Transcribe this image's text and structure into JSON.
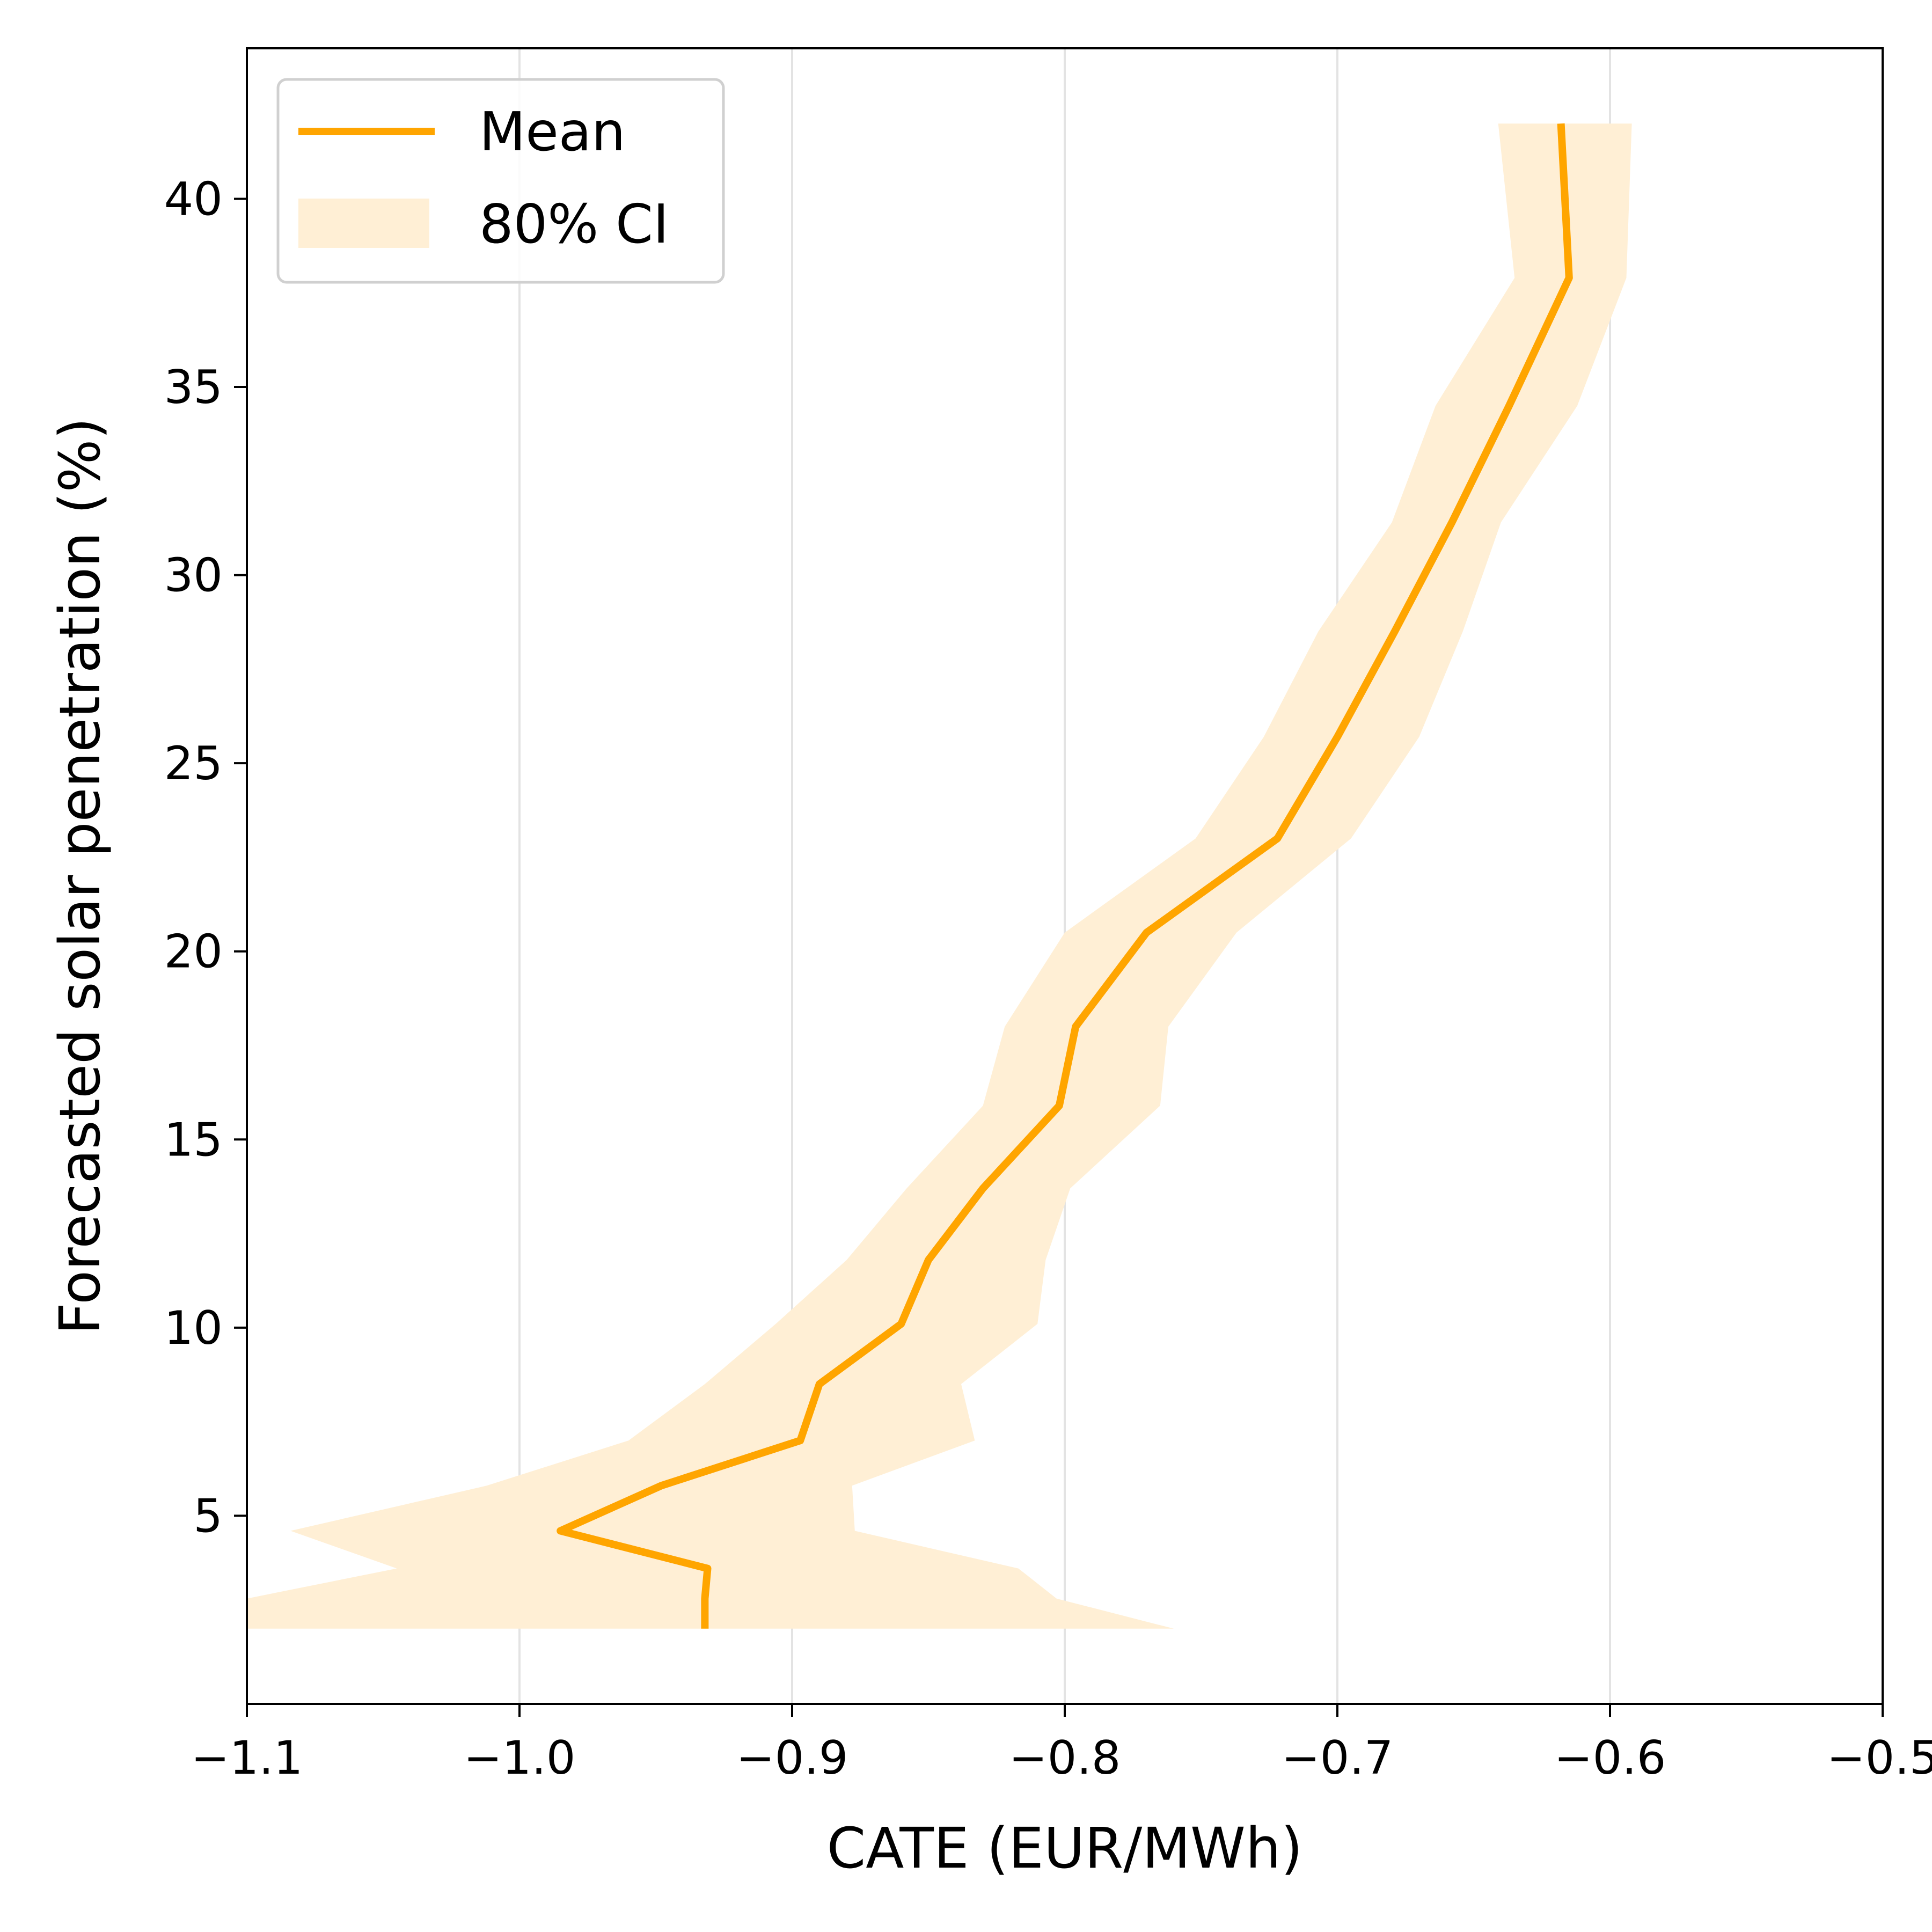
{
  "chart_data": {
    "type": "line",
    "title": "",
    "xlabel": "CATE (EUR/MWh)",
    "ylabel": "Forecasted solar penetration (%)",
    "xlim": [
      -1.1,
      -0.5
    ],
    "ylim": [
      0,
      44
    ],
    "x_ticks": [
      -1.1,
      -1.0,
      -0.9,
      -0.8,
      -0.7,
      -0.6,
      -0.5
    ],
    "x_tick_labels": [
      "−1.1",
      "−1.0",
      "−0.9",
      "−0.8",
      "−0.7",
      "−0.6",
      "−0.5"
    ],
    "y_ticks": [
      5,
      10,
      15,
      20,
      25,
      30,
      35,
      40
    ],
    "y_tick_labels": [
      "5",
      "10",
      "15",
      "20",
      "25",
      "30",
      "35",
      "40"
    ],
    "grid": "vertical",
    "legend_position": "top-left",
    "series": [
      {
        "name": "Mean",
        "color": "#FFA500",
        "points": [
          {
            "x": -0.932,
            "y": 2.0
          },
          {
            "x": -0.932,
            "y": 2.8
          },
          {
            "x": -0.931,
            "y": 3.6
          },
          {
            "x": -0.985,
            "y": 4.6
          },
          {
            "x": -0.948,
            "y": 5.8
          },
          {
            "x": -0.897,
            "y": 7.0
          },
          {
            "x": -0.89,
            "y": 8.5
          },
          {
            "x": -0.86,
            "y": 10.1
          },
          {
            "x": -0.85,
            "y": 11.8
          },
          {
            "x": -0.83,
            "y": 13.7
          },
          {
            "x": -0.802,
            "y": 15.9
          },
          {
            "x": -0.796,
            "y": 18.0
          },
          {
            "x": -0.77,
            "y": 20.5
          },
          {
            "x": -0.722,
            "y": 23.0
          },
          {
            "x": -0.7,
            "y": 25.7
          },
          {
            "x": -0.679,
            "y": 28.5
          },
          {
            "x": -0.658,
            "y": 31.4
          },
          {
            "x": -0.637,
            "y": 34.5
          },
          {
            "x": -0.615,
            "y": 37.9
          },
          {
            "x": -0.618,
            "y": 42.0
          }
        ]
      },
      {
        "name": "80% CI",
        "color": "#FFEFD5",
        "bands": [
          {
            "y": 2.0,
            "low": -1.1,
            "high": -0.76
          },
          {
            "y": 2.8,
            "low": -1.1,
            "high": -0.803
          },
          {
            "y": 3.6,
            "low": -1.045,
            "high": -0.817
          },
          {
            "y": 4.6,
            "low": -1.084,
            "high": -0.877
          },
          {
            "y": 5.8,
            "low": -1.012,
            "high": -0.878
          },
          {
            "y": 7.0,
            "low": -0.96,
            "high": -0.833
          },
          {
            "y": 8.5,
            "low": -0.932,
            "high": -0.838
          },
          {
            "y": 10.1,
            "low": -0.906,
            "high": -0.81
          },
          {
            "y": 11.8,
            "low": -0.88,
            "high": -0.807
          },
          {
            "y": 13.7,
            "low": -0.858,
            "high": -0.798
          },
          {
            "y": 15.9,
            "low": -0.83,
            "high": -0.765
          },
          {
            "y": 18.0,
            "low": -0.822,
            "high": -0.762
          },
          {
            "y": 20.5,
            "low": -0.8,
            "high": -0.737
          },
          {
            "y": 23.0,
            "low": -0.752,
            "high": -0.695
          },
          {
            "y": 25.7,
            "low": -0.727,
            "high": -0.67
          },
          {
            "y": 28.5,
            "low": -0.707,
            "high": -0.654
          },
          {
            "y": 31.4,
            "low": -0.68,
            "high": -0.64
          },
          {
            "y": 34.5,
            "low": -0.664,
            "high": -0.612
          },
          {
            "y": 37.9,
            "low": -0.635,
            "high": -0.594
          },
          {
            "y": 42.0,
            "low": -0.641,
            "high": -0.592
          }
        ]
      }
    ]
  }
}
